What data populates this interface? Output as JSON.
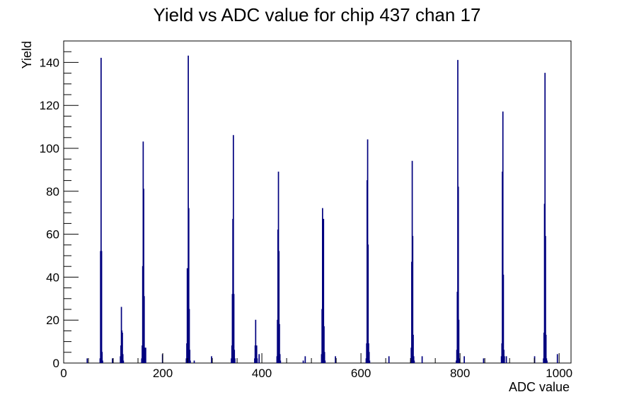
{
  "chart_data": {
    "type": "bar",
    "title": "Yield vs ADC value for chip 437 chan 17",
    "xlabel": "ADC value",
    "ylabel": "Yield",
    "xlim": [
      0,
      1024
    ],
    "ylim": [
      0,
      150
    ],
    "x_ticks": [
      0,
      200,
      400,
      600,
      800,
      1000
    ],
    "y_ticks": [
      0,
      20,
      40,
      60,
      80,
      100,
      120,
      140
    ],
    "grid": false,
    "legend": "none",
    "color": "#00007f",
    "bin_width": 1,
    "bins": [
      [
        47,
        2
      ],
      [
        73,
        2
      ],
      [
        74,
        52
      ],
      [
        75,
        142
      ],
      [
        76,
        52
      ],
      [
        77,
        5
      ],
      [
        78,
        1
      ],
      [
        98,
        2
      ],
      [
        114,
        3
      ],
      [
        115,
        8
      ],
      [
        116,
        26
      ],
      [
        117,
        15
      ],
      [
        118,
        14
      ],
      [
        119,
        4
      ],
      [
        120,
        1
      ],
      [
        157,
        2
      ],
      [
        158,
        8
      ],
      [
        159,
        45
      ],
      [
        160,
        103
      ],
      [
        161,
        81
      ],
      [
        162,
        31
      ],
      [
        163,
        7
      ],
      [
        164,
        2
      ],
      [
        165,
        7
      ],
      [
        199,
        4
      ],
      [
        247,
        2
      ],
      [
        248,
        9
      ],
      [
        249,
        44
      ],
      [
        250,
        33
      ],
      [
        251,
        143
      ],
      [
        252,
        72
      ],
      [
        253,
        25
      ],
      [
        254,
        6
      ],
      [
        255,
        1
      ],
      [
        263,
        1
      ],
      [
        298,
        3
      ],
      [
        338,
        2
      ],
      [
        339,
        8
      ],
      [
        340,
        32
      ],
      [
        341,
        67
      ],
      [
        342,
        106
      ],
      [
        343,
        32
      ],
      [
        344,
        6
      ],
      [
        345,
        2
      ],
      [
        385,
        2
      ],
      [
        386,
        8
      ],
      [
        387,
        20
      ],
      [
        388,
        7
      ],
      [
        389,
        8
      ],
      [
        390,
        2
      ],
      [
        394,
        4
      ],
      [
        430,
        3
      ],
      [
        431,
        20
      ],
      [
        432,
        62
      ],
      [
        433,
        89
      ],
      [
        434,
        52
      ],
      [
        435,
        18
      ],
      [
        436,
        4
      ],
      [
        437,
        1
      ],
      [
        483,
        1
      ],
      [
        487,
        3
      ],
      [
        520,
        4
      ],
      [
        521,
        25
      ],
      [
        522,
        72
      ],
      [
        523,
        45
      ],
      [
        524,
        67
      ],
      [
        525,
        17
      ],
      [
        526,
        5
      ],
      [
        527,
        1
      ],
      [
        548,
        3
      ],
      [
        610,
        2
      ],
      [
        611,
        9
      ],
      [
        612,
        85
      ],
      [
        613,
        104
      ],
      [
        614,
        55
      ],
      [
        615,
        9
      ],
      [
        616,
        5
      ],
      [
        617,
        1
      ],
      [
        656,
        3
      ],
      [
        700,
        1
      ],
      [
        701,
        7
      ],
      [
        702,
        47
      ],
      [
        703,
        94
      ],
      [
        704,
        59
      ],
      [
        705,
        13
      ],
      [
        706,
        3
      ],
      [
        707,
        1
      ],
      [
        723,
        3
      ],
      [
        792,
        1
      ],
      [
        793,
        6
      ],
      [
        794,
        33
      ],
      [
        795,
        141
      ],
      [
        796,
        82
      ],
      [
        797,
        20
      ],
      [
        798,
        2
      ],
      [
        808,
        3
      ],
      [
        847,
        2
      ],
      [
        883,
        3
      ],
      [
        884,
        9
      ],
      [
        885,
        89
      ],
      [
        886,
        117
      ],
      [
        887,
        41
      ],
      [
        888,
        6
      ],
      [
        889,
        3
      ],
      [
        893,
        3
      ],
      [
        950,
        3
      ],
      [
        968,
        2
      ],
      [
        969,
        14
      ],
      [
        970,
        74
      ],
      [
        971,
        135
      ],
      [
        972,
        59
      ],
      [
        973,
        13
      ],
      [
        974,
        2
      ],
      [
        975,
        1
      ],
      [
        996,
        4
      ]
    ]
  }
}
